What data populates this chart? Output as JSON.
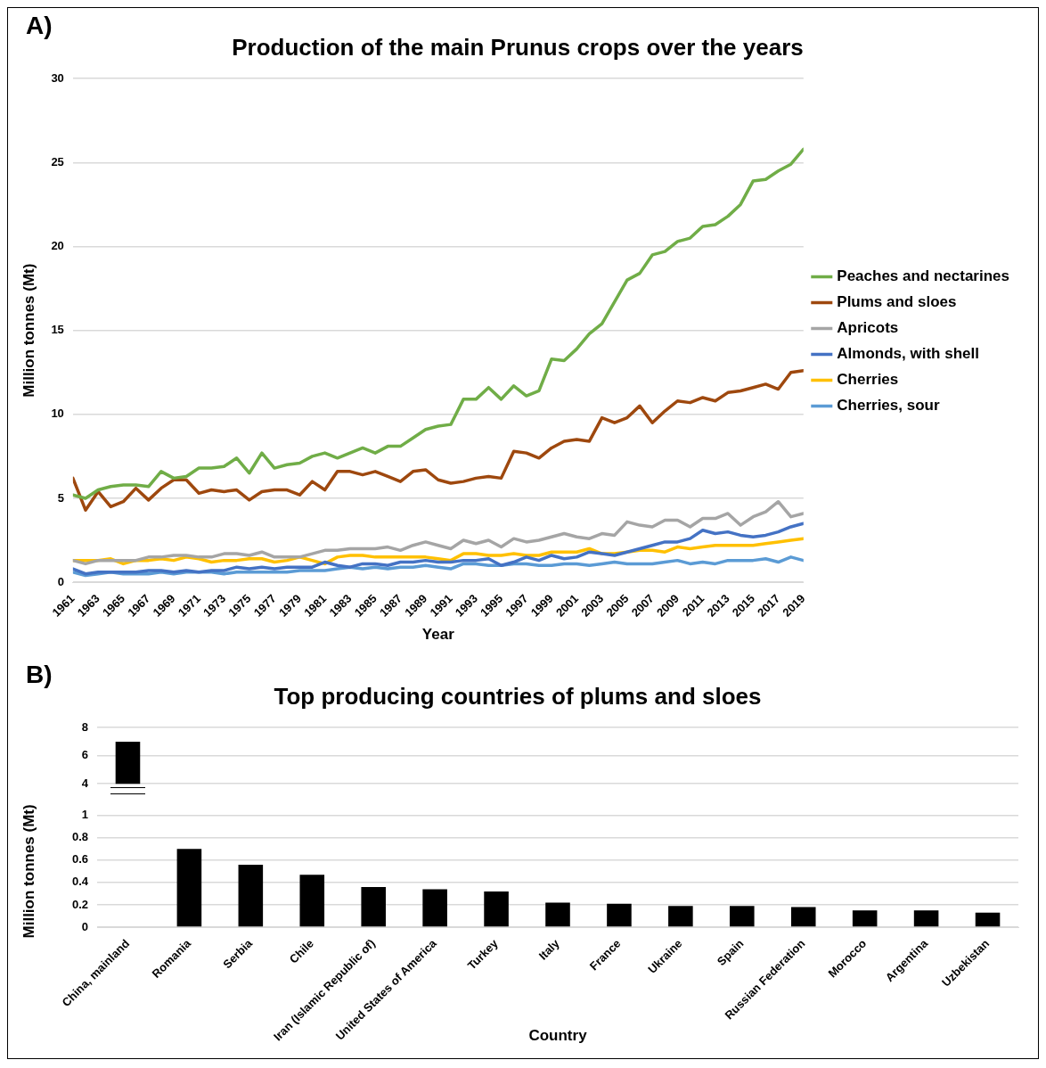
{
  "chart_data": [
    {
      "type": "line",
      "title": "Production of the main Prunus crops over the years",
      "annotations": [
        "A)"
      ],
      "xlabel": "Year",
      "ylabel": "Million tonnes (Mt)",
      "x": [
        1961,
        1962,
        1963,
        1964,
        1965,
        1966,
        1967,
        1968,
        1969,
        1970,
        1971,
        1972,
        1973,
        1974,
        1975,
        1976,
        1977,
        1978,
        1979,
        1980,
        1981,
        1982,
        1983,
        1984,
        1985,
        1986,
        1987,
        1988,
        1989,
        1990,
        1991,
        1992,
        1993,
        1994,
        1995,
        1996,
        1997,
        1998,
        1999,
        2000,
        2001,
        2002,
        2003,
        2004,
        2005,
        2006,
        2007,
        2008,
        2009,
        2010,
        2011,
        2012,
        2013,
        2014,
        2015,
        2016,
        2017,
        2018,
        2019
      ],
      "xlim": [
        1961,
        2019
      ],
      "xticks": [
        1961,
        1963,
        1965,
        1967,
        1969,
        1971,
        1973,
        1975,
        1977,
        1979,
        1981,
        1983,
        1985,
        1987,
        1989,
        1991,
        1993,
        1995,
        1997,
        1999,
        2001,
        2003,
        2005,
        2007,
        2009,
        2011,
        2013,
        2015,
        2017,
        2019
      ],
      "series": [
        {
          "name": "Peaches and nectarines",
          "color": "#70ad47",
          "values": [
            5.2,
            5.0,
            5.5,
            5.7,
            5.8,
            5.8,
            5.7,
            6.6,
            6.2,
            6.3,
            6.8,
            6.8,
            6.9,
            7.4,
            6.5,
            7.7,
            6.8,
            7.0,
            7.1,
            7.5,
            7.7,
            7.4,
            7.7,
            8.0,
            7.7,
            8.1,
            8.1,
            8.6,
            9.1,
            9.3,
            9.4,
            10.9,
            10.9,
            11.6,
            10.9,
            11.7,
            11.1,
            11.4,
            13.3,
            13.2,
            13.9,
            14.8,
            15.4,
            16.7,
            18.0,
            18.4,
            19.5,
            19.7,
            20.3,
            20.5,
            21.2,
            21.3,
            21.8,
            22.5,
            23.9,
            24.0,
            24.5,
            24.9,
            25.8
          ]
        },
        {
          "name": "Plums and sloes",
          "color": "#9e480e",
          "values": [
            6.2,
            4.3,
            5.4,
            4.5,
            4.8,
            5.6,
            4.9,
            5.6,
            6.1,
            6.1,
            5.3,
            5.5,
            5.4,
            5.5,
            4.9,
            5.4,
            5.5,
            5.5,
            5.2,
            6.0,
            5.5,
            6.6,
            6.6,
            6.4,
            6.6,
            6.3,
            6.0,
            6.6,
            6.7,
            6.1,
            5.9,
            6.0,
            6.2,
            6.3,
            6.2,
            7.8,
            7.7,
            7.4,
            8.0,
            8.4,
            8.5,
            8.4,
            9.8,
            9.5,
            9.8,
            10.5,
            9.5,
            10.2,
            10.8,
            10.7,
            11.0,
            10.8,
            11.3,
            11.4,
            11.6,
            11.8,
            11.5,
            12.5,
            12.6
          ]
        },
        {
          "name": "Apricots",
          "color": "#a5a5a5",
          "values": [
            1.3,
            1.1,
            1.3,
            1.3,
            1.3,
            1.3,
            1.5,
            1.5,
            1.6,
            1.6,
            1.5,
            1.5,
            1.7,
            1.7,
            1.6,
            1.8,
            1.5,
            1.5,
            1.5,
            1.7,
            1.9,
            1.9,
            2.0,
            2.0,
            2.0,
            2.1,
            1.9,
            2.2,
            2.4,
            2.2,
            2.0,
            2.5,
            2.3,
            2.5,
            2.1,
            2.6,
            2.4,
            2.5,
            2.7,
            2.9,
            2.7,
            2.6,
            2.9,
            2.8,
            3.6,
            3.4,
            3.3,
            3.7,
            3.7,
            3.3,
            3.8,
            3.8,
            4.1,
            3.4,
            3.9,
            4.2,
            4.8,
            3.9,
            4.1
          ]
        },
        {
          "name": "Almonds, with shell",
          "color": "#4472c4",
          "values": [
            0.8,
            0.5,
            0.6,
            0.6,
            0.6,
            0.6,
            0.7,
            0.7,
            0.6,
            0.7,
            0.6,
            0.7,
            0.7,
            0.9,
            0.8,
            0.9,
            0.8,
            0.9,
            0.9,
            0.9,
            1.2,
            1.0,
            0.9,
            1.1,
            1.1,
            1.0,
            1.2,
            1.2,
            1.3,
            1.2,
            1.2,
            1.3,
            1.3,
            1.4,
            1.0,
            1.2,
            1.5,
            1.3,
            1.6,
            1.4,
            1.5,
            1.8,
            1.7,
            1.6,
            1.8,
            2.0,
            2.2,
            2.4,
            2.4,
            2.6,
            3.1,
            2.9,
            3.0,
            2.8,
            2.7,
            2.8,
            3.0,
            3.3,
            3.5
          ]
        },
        {
          "name": "Cherries",
          "color": "#ffc000",
          "values": [
            1.3,
            1.3,
            1.3,
            1.4,
            1.1,
            1.3,
            1.3,
            1.4,
            1.3,
            1.5,
            1.4,
            1.2,
            1.3,
            1.3,
            1.4,
            1.4,
            1.2,
            1.3,
            1.5,
            1.3,
            1.1,
            1.5,
            1.6,
            1.6,
            1.5,
            1.5,
            1.5,
            1.5,
            1.5,
            1.4,
            1.3,
            1.7,
            1.7,
            1.6,
            1.6,
            1.7,
            1.6,
            1.6,
            1.8,
            1.8,
            1.8,
            2.0,
            1.7,
            1.7,
            1.8,
            1.9,
            1.9,
            1.8,
            2.1,
            2.0,
            2.1,
            2.2,
            2.2,
            2.2,
            2.2,
            2.3,
            2.4,
            2.5,
            2.6
          ]
        },
        {
          "name": "Cherries, sour",
          "color": "#5b9bd5",
          "values": [
            0.6,
            0.4,
            0.5,
            0.6,
            0.5,
            0.5,
            0.5,
            0.6,
            0.5,
            0.6,
            0.6,
            0.6,
            0.5,
            0.6,
            0.6,
            0.6,
            0.6,
            0.6,
            0.7,
            0.7,
            0.7,
            0.8,
            0.9,
            0.8,
            0.9,
            0.8,
            0.9,
            0.9,
            1.0,
            0.9,
            0.8,
            1.1,
            1.1,
            1.0,
            1.0,
            1.1,
            1.1,
            1.0,
            1.0,
            1.1,
            1.1,
            1.0,
            1.1,
            1.2,
            1.1,
            1.1,
            1.1,
            1.2,
            1.3,
            1.1,
            1.2,
            1.1,
            1.3,
            1.3,
            1.3,
            1.4,
            1.2,
            1.5,
            1.3
          ]
        }
      ],
      "ylim": [
        0,
        30
      ],
      "yticks": [
        0,
        5,
        10,
        15,
        20,
        25,
        30
      ],
      "grid": "y",
      "legend": "right",
      "marker": "none",
      "line_style": "solid"
    },
    {
      "type": "bar",
      "title": "Top producing countries of plums and sloes",
      "annotations": [
        "B)"
      ],
      "categories": [
        null,
        null,
        null,
        null,
        null,
        null,
        null,
        null,
        null,
        null,
        null,
        null,
        null,
        null,
        null
      ],
      "values": [
        7.0,
        null,
        null,
        null,
        null,
        null,
        null,
        null,
        null,
        null,
        null,
        null,
        null,
        null,
        null
      ],
      "color": "#000000",
      "ylim": [
        4,
        8
      ],
      "yticks": [
        4,
        6,
        8
      ],
      "grid": "y",
      "tick_labels": "y",
      "legend": false
    },
    {
      "type": "bar",
      "xlabel": "Country",
      "ylabel": "Million tonnes (Mt)",
      "categories": [
        "China, mainland",
        "Romania",
        "Serbia",
        "Chile",
        "Iran (Islamic Republic of)",
        "United States of America",
        "Turkey",
        "Italy",
        "France",
        "Ukraine",
        "Spain",
        "Russian Federation",
        "Morocco",
        "Argentina",
        "Uzbekistan"
      ],
      "values": [
        null,
        0.7,
        0.56,
        0.47,
        0.36,
        0.34,
        0.32,
        0.22,
        0.21,
        0.19,
        0.19,
        0.18,
        0.15,
        0.15,
        0.13
      ],
      "color": "#000000",
      "ylim": [
        0,
        1
      ],
      "yticks": [
        0,
        0.2,
        0.4,
        0.6,
        0.8,
        1
      ],
      "grid": "y",
      "legend": false
    }
  ]
}
